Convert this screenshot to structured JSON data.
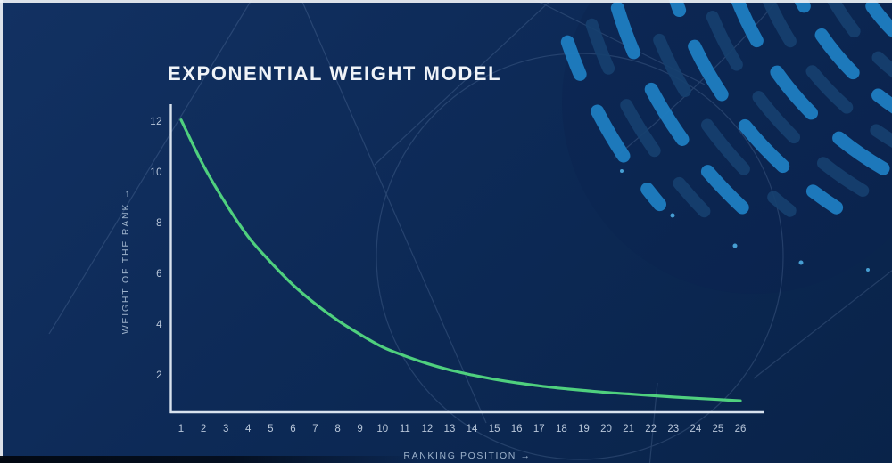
{
  "title": "EXPONENTIAL WEIGHT MODEL",
  "colors": {
    "background_navy": "#0d2a57",
    "curve_green": "#4fd07e",
    "stripe_blue": "#1f7dc1",
    "stripe_dark_blue": "#16406f",
    "axis_line": "#d8e2ee",
    "tick_text": "#b9c7da"
  },
  "chart_data": {
    "type": "line",
    "title": "EXPONENTIAL WEIGHT MODEL",
    "xlabel": "RANKING POSITION →",
    "ylabel": "WEIGHT OF THE RANK →",
    "x": [
      1,
      2,
      3,
      4,
      5,
      6,
      7,
      8,
      9,
      10,
      11,
      12,
      13,
      14,
      15,
      16,
      17,
      18,
      19,
      20,
      21,
      22,
      23,
      24,
      25,
      26
    ],
    "series": [
      {
        "name": "weight-of-rank",
        "values": [
          12.1,
          10.3,
          8.8,
          7.5,
          6.5,
          5.6,
          4.85,
          4.2,
          3.65,
          3.15,
          2.8,
          2.5,
          2.25,
          2.05,
          1.88,
          1.74,
          1.62,
          1.52,
          1.44,
          1.36,
          1.3,
          1.24,
          1.18,
          1.13,
          1.08,
          1.03
        ]
      }
    ],
    "x_ticks": [
      1,
      2,
      3,
      4,
      5,
      6,
      7,
      8,
      9,
      10,
      11,
      12,
      13,
      14,
      15,
      16,
      17,
      18,
      19,
      20,
      21,
      22,
      23,
      24,
      25,
      26
    ],
    "y_ticks": [
      2,
      4,
      6,
      8,
      10,
      12
    ],
    "xlim": [
      0.5,
      27
    ],
    "ylim": [
      0.6,
      12.7
    ],
    "grid": false,
    "legend": "none",
    "line_color": "#4fd07e"
  }
}
